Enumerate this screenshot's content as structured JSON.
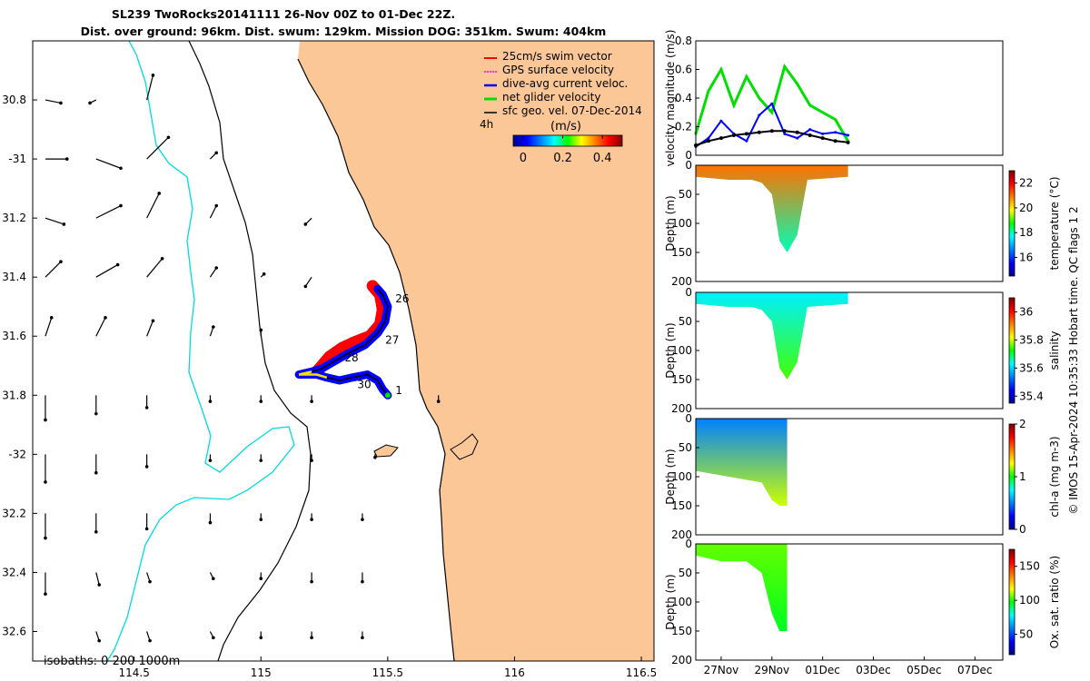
{
  "title": {
    "line1": "SL239 TwoRocks20141111 26-Nov 00Z to 01-Dec 22Z.",
    "line2": "Dist. over ground: 96km. Dist. swum: 129km. Mission DOG: 351km. Swum: 404km"
  },
  "colors": {
    "land": "#fbc796",
    "swim": "#ff0000",
    "gps": "#ff00ff",
    "diveavg": "#0000ff",
    "netglider": "#00e000",
    "sfcgeo": "#000000",
    "isobath200": "#00dcdc"
  },
  "map": {
    "legend": [
      {
        "label": "25cm/s swim vector",
        "color": "#ff0000"
      },
      {
        "label": "GPS surface velocity",
        "color": "#ff00ff"
      },
      {
        "label": "dive-avg current veloc.",
        "color": "#0000ff"
      },
      {
        "label": "net glider velocity",
        "color": "#00e000"
      },
      {
        "label": "sfc geo. vel. 07-Dec-2014",
        "color": "#000000"
      }
    ],
    "interval_label": "4h",
    "colorbar_units": "(m/s)",
    "colorbar_ticks": [
      "0",
      "0.2",
      "0.4"
    ],
    "colorbar_range": [
      -0.05,
      0.5
    ],
    "isobaths_label": "isobaths: 0   200  1000m",
    "lon_ticks": [
      "114.5",
      "115",
      "115.5",
      "116",
      "116.5"
    ],
    "lon_values": [
      114.5,
      115,
      115.5,
      116,
      116.5
    ],
    "lat_ticks": [
      "30.8",
      "-31",
      "31.2",
      "31.4",
      "31.6",
      "31.8",
      "-32",
      "32.2",
      "32.4",
      "32.6"
    ],
    "lat_values": [
      -30.8,
      -31.0,
      -31.2,
      -31.4,
      -31.6,
      -31.8,
      -32.0,
      -32.2,
      -32.4,
      -32.6
    ],
    "lon_range": [
      114.1,
      116.55
    ],
    "lat_range": [
      -32.7,
      -30.6
    ],
    "day_markers": [
      {
        "label": "26",
        "lon": 115.53,
        "lat": -31.47
      },
      {
        "label": "27",
        "lon": 115.49,
        "lat": -31.61
      },
      {
        "label": "28",
        "lon": 115.33,
        "lat": -31.67
      },
      {
        "label": "30",
        "lon": 115.38,
        "lat": -31.76
      },
      {
        "label": "1",
        "lon": 115.53,
        "lat": -31.78
      }
    ],
    "swim_track": [
      [
        115.44,
        -31.43
      ],
      [
        115.47,
        -31.46
      ],
      [
        115.48,
        -31.51
      ],
      [
        115.47,
        -31.56
      ],
      [
        115.43,
        -31.6
      ],
      [
        115.37,
        -31.62
      ],
      [
        115.32,
        -31.64
      ],
      [
        115.27,
        -31.67
      ],
      [
        115.24,
        -31.7
      ],
      [
        115.22,
        -31.72
      ]
    ],
    "glider_track": [
      [
        115.5,
        -31.8
      ],
      [
        115.48,
        -31.78
      ],
      [
        115.46,
        -31.75
      ],
      [
        115.42,
        -31.73
      ],
      [
        115.36,
        -31.74
      ],
      [
        115.31,
        -31.75
      ],
      [
        115.26,
        -31.74
      ],
      [
        115.22,
        -31.73
      ],
      [
        115.18,
        -31.73
      ],
      [
        115.15,
        -31.73
      ],
      [
        115.2,
        -31.72
      ],
      [
        115.24,
        -31.71
      ],
      [
        115.28,
        -31.69
      ],
      [
        115.34,
        -31.66
      ],
      [
        115.41,
        -31.63
      ],
      [
        115.46,
        -31.59
      ],
      [
        115.49,
        -31.55
      ],
      [
        115.5,
        -31.5
      ],
      [
        115.48,
        -31.46
      ],
      [
        115.46,
        -31.44
      ]
    ],
    "sfc_vectors": [
      [
        114.15,
        -30.8,
        0.05,
        -0.01
      ],
      [
        114.35,
        -30.8,
        -0.02,
        -0.01
      ],
      [
        114.55,
        -30.8,
        0.02,
        0.08
      ],
      [
        114.15,
        -31.0,
        0.07,
        0.0
      ],
      [
        114.35,
        -31.0,
        0.08,
        -0.03
      ],
      [
        114.55,
        -31.0,
        0.07,
        0.07
      ],
      [
        114.8,
        -31.0,
        0.02,
        0.02
      ],
      [
        114.15,
        -31.2,
        0.06,
        -0.02
      ],
      [
        114.35,
        -31.2,
        0.08,
        0.04
      ],
      [
        114.55,
        -31.2,
        0.04,
        0.08
      ],
      [
        114.8,
        -31.2,
        0.02,
        0.04
      ],
      [
        115.2,
        -31.2,
        -0.02,
        -0.02
      ],
      [
        114.15,
        -31.4,
        0.05,
        0.05
      ],
      [
        114.35,
        -31.4,
        0.07,
        0.04
      ],
      [
        114.55,
        -31.4,
        0.05,
        0.06
      ],
      [
        114.8,
        -31.4,
        0.02,
        0.03
      ],
      [
        115.0,
        -31.4,
        0.01,
        0.01
      ],
      [
        115.2,
        -31.4,
        -0.02,
        -0.03
      ],
      [
        114.15,
        -31.6,
        0.02,
        0.06
      ],
      [
        114.35,
        -31.6,
        0.03,
        0.06
      ],
      [
        114.55,
        -31.6,
        0.02,
        0.05
      ],
      [
        114.8,
        -31.6,
        0.01,
        0.03
      ],
      [
        115.0,
        -31.6,
        0.0,
        0.02
      ],
      [
        114.15,
        -31.8,
        0.0,
        -0.08
      ],
      [
        114.35,
        -31.8,
        0.0,
        -0.06
      ],
      [
        114.55,
        -31.8,
        0.0,
        -0.04
      ],
      [
        114.8,
        -31.8,
        0.0,
        -0.02
      ],
      [
        115.0,
        -31.8,
        0.0,
        -0.02
      ],
      [
        115.2,
        -31.8,
        0.0,
        -0.02
      ],
      [
        115.7,
        -31.8,
        0.0,
        -0.02
      ],
      [
        114.15,
        -32.0,
        0.0,
        -0.09
      ],
      [
        114.35,
        -32.0,
        0.0,
        -0.06
      ],
      [
        114.55,
        -32.0,
        0.0,
        -0.04
      ],
      [
        114.8,
        -32.0,
        0.0,
        -0.02
      ],
      [
        115.0,
        -32.0,
        0.0,
        -0.02
      ],
      [
        115.2,
        -32.0,
        0.0,
        -0.02
      ],
      [
        115.45,
        -32.0,
        0.0,
        -0.01
      ],
      [
        114.15,
        -32.2,
        0.0,
        -0.08
      ],
      [
        114.35,
        -32.2,
        0.0,
        -0.06
      ],
      [
        114.55,
        -32.2,
        0.0,
        -0.05
      ],
      [
        114.8,
        -32.2,
        0.0,
        -0.03
      ],
      [
        115.0,
        -32.2,
        0.0,
        -0.02
      ],
      [
        115.2,
        -32.2,
        0.0,
        -0.02
      ],
      [
        115.4,
        -32.2,
        0.0,
        -0.02
      ],
      [
        114.15,
        -32.4,
        0.0,
        -0.07
      ],
      [
        114.35,
        -32.4,
        0.01,
        -0.04
      ],
      [
        114.55,
        -32.4,
        0.01,
        -0.03
      ],
      [
        114.8,
        -32.4,
        0.01,
        -0.02
      ],
      [
        115.0,
        -32.4,
        0.0,
        -0.02
      ],
      [
        115.2,
        -32.4,
        0.0,
        -0.03
      ],
      [
        115.4,
        -32.4,
        0.0,
        -0.03
      ],
      [
        114.35,
        -32.6,
        0.01,
        -0.03
      ],
      [
        114.55,
        -32.6,
        0.01,
        -0.03
      ],
      [
        114.8,
        -32.6,
        0.01,
        -0.02
      ],
      [
        115.0,
        -32.6,
        0.0,
        -0.02
      ],
      [
        115.2,
        -32.6,
        0.0,
        -0.02
      ],
      [
        115.4,
        -32.6,
        0.0,
        -0.02
      ]
    ]
  },
  "chart_data": [
    {
      "type": "line",
      "panel": "velocity",
      "ylabel": "velocity magnitude (m/s)",
      "ylim": [
        0,
        0.8
      ],
      "yticks": [
        "0",
        "0.2",
        "0.4",
        "0.6",
        "0.8"
      ],
      "ytick_values": [
        0,
        0.2,
        0.4,
        0.6,
        0.8
      ],
      "x_days": [
        26,
        26.5,
        27,
        27.5,
        28,
        28.5,
        29,
        29.5,
        30,
        30.5,
        31,
        31.5,
        32
      ],
      "series": [
        {
          "name": "net glider velocity",
          "color": "#00e000",
          "values": [
            0.15,
            0.45,
            0.6,
            0.35,
            0.55,
            0.4,
            0.3,
            0.62,
            0.5,
            0.35,
            0.3,
            0.25,
            0.1
          ]
        },
        {
          "name": "dive-avg current veloc.",
          "color": "#0000ff",
          "values": [
            0.06,
            0.12,
            0.24,
            0.15,
            0.1,
            0.28,
            0.36,
            0.15,
            0.12,
            0.18,
            0.15,
            0.16,
            0.14
          ]
        },
        {
          "name": "sfc geo. vel.",
          "color": "#000000",
          "values": [
            0.07,
            0.1,
            0.12,
            0.14,
            0.15,
            0.16,
            0.17,
            0.17,
            0.16,
            0.14,
            0.12,
            0.1,
            0.09
          ]
        }
      ]
    },
    {
      "type": "heatmap",
      "panel": "temperature",
      "ylabel": "Depth (m)",
      "clabel": "temperature (°C)",
      "clim": [
        14.5,
        23
      ],
      "cticks": [
        "16",
        "18",
        "20",
        "22"
      ],
      "ctick_values": [
        16,
        18,
        20,
        22
      ],
      "yticks": [
        "0",
        "50",
        "100",
        "150",
        "200"
      ],
      "ylim": [
        0,
        200
      ],
      "profile_days": [
        26,
        27.3,
        28.2,
        28.6,
        29.0,
        29.3,
        29.6,
        30.0,
        30.4,
        32.0
      ],
      "profile_depths": [
        20,
        25,
        25,
        30,
        50,
        130,
        150,
        120,
        25,
        20
      ],
      "surface_value": 21.0,
      "deep_value": 18.0
    },
    {
      "type": "heatmap",
      "panel": "salinity",
      "ylabel": "Depth (m)",
      "clabel": "salinity",
      "clim": [
        35.35,
        36.1
      ],
      "cticks": [
        "35.4",
        "35.6",
        "35.8",
        "36"
      ],
      "ctick_values": [
        35.4,
        35.6,
        35.8,
        36.0
      ],
      "yticks": [
        "0",
        "50",
        "100",
        "150",
        "200"
      ],
      "ylim": [
        0,
        200
      ],
      "profile_days": [
        26,
        27.3,
        28.2,
        28.6,
        29.0,
        29.3,
        29.6,
        30.0,
        30.4,
        32.0
      ],
      "profile_depths": [
        20,
        25,
        25,
        30,
        50,
        130,
        150,
        120,
        25,
        20
      ],
      "surface_value": 35.62,
      "deep_value": 35.75
    },
    {
      "type": "heatmap",
      "panel": "chl-a",
      "ylabel": "Depth (m)",
      "clabel": "chl-a (mg m-3)",
      "clim": [
        0,
        2
      ],
      "cticks": [
        "0",
        "1",
        "2"
      ],
      "ctick_values": [
        0,
        1,
        2
      ],
      "yticks": [
        "0",
        "50",
        "100",
        "150",
        "200"
      ],
      "ylim": [
        0,
        200
      ],
      "profile_days": [
        26,
        28.6,
        29.0,
        29.3,
        29.6
      ],
      "profile_depths": [
        90,
        110,
        140,
        150,
        150
      ],
      "surface_value": 0.5,
      "deep_value": 1.2
    },
    {
      "type": "heatmap",
      "panel": "oxygen",
      "ylabel": "Depth (m)",
      "clabel": "Ox. sat. ratio (%)",
      "clim": [
        20,
        175
      ],
      "cticks": [
        "50",
        "100",
        "150"
      ],
      "ctick_values": [
        50,
        100,
        150
      ],
      "yticks": [
        "0",
        "50",
        "100",
        "150",
        "200"
      ],
      "ylim": [
        0,
        200
      ],
      "profile_days": [
        26,
        27.0,
        28.0,
        28.6,
        29.0,
        29.3,
        29.6
      ],
      "profile_depths": [
        20,
        30,
        30,
        50,
        120,
        150,
        150
      ],
      "surface_value": 105,
      "deep_value": 95
    }
  ],
  "time_axis": {
    "labels": [
      "27Nov",
      "29Nov",
      "01Dec",
      "03Dec",
      "05Dec",
      "07Dec"
    ],
    "days": [
      27,
      29,
      31,
      33,
      35,
      37
    ],
    "range": [
      26,
      38.1
    ]
  },
  "side_caption": "© IMOS 15-Apr-2024 10:35:33 Hobart time. QC flags 1  2"
}
